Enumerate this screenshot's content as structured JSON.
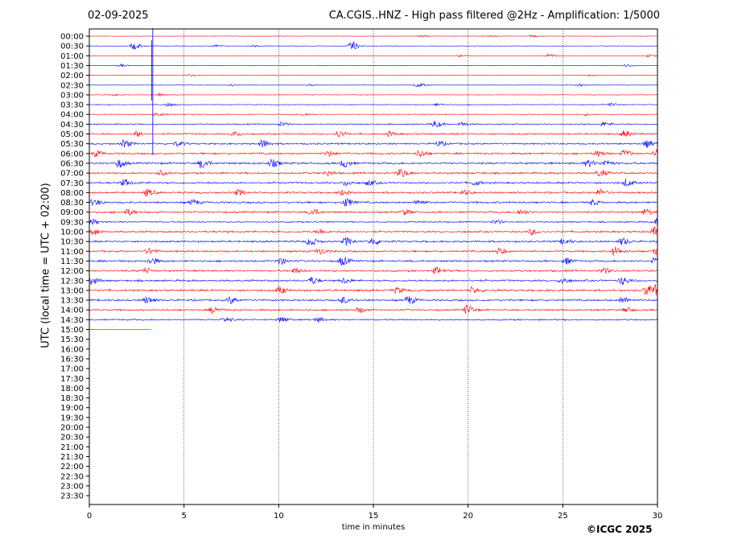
{
  "header": {
    "date": "02-09-2025",
    "title": "CA.CGIS..HNZ - High pass filtered @2Hz - Amplification: 1/5000"
  },
  "footer": {
    "copyright": "©ICGC 2025"
  },
  "colors": {
    "trace_a": "#ff0000",
    "trace_b": "#0000ff",
    "grid": "#000000"
  },
  "chart_data": {
    "type": "line",
    "title": "CA.CGIS..HNZ - High pass filtered @2Hz - Amplification: 1/5000",
    "xlabel": "time in minutes",
    "ylabel": "UTC (local time = UTC + 02:00)",
    "xlim": [
      0,
      30
    ],
    "xticks": [
      0,
      5,
      10,
      15,
      20,
      25,
      30
    ],
    "grid_x": true,
    "row_labels": [
      "00:00",
      "00:30",
      "01:00",
      "01:30",
      "02:00",
      "02:30",
      "03:00",
      "03:30",
      "04:00",
      "04:30",
      "05:00",
      "05:30",
      "06:00",
      "06:30",
      "07:00",
      "07:30",
      "08:00",
      "08:30",
      "09:00",
      "09:30",
      "10:00",
      "10:30",
      "11:00",
      "11:30",
      "12:00",
      "12:30",
      "13:00",
      "13:30",
      "14:00",
      "14:30",
      "15:00",
      "15:30",
      "16:00",
      "16:30",
      "17:00",
      "17:30",
      "18:00",
      "18:30",
      "19:00",
      "19:30",
      "20:00",
      "20:30",
      "21:00",
      "21:30",
      "22:00",
      "22:30",
      "23:00",
      "23:30"
    ],
    "series": [
      {
        "row": "00:00",
        "color": "#ff0000",
        "end_min": 30,
        "noise": 0.3,
        "events": [
          [
            17.5,
            0.5
          ],
          [
            21.2,
            0.5
          ],
          [
            23.3,
            0.4
          ]
        ]
      },
      {
        "row": "00:30",
        "color": "#0000ff",
        "end_min": 30,
        "noise": 0.3,
        "events": [
          [
            2.3,
            1.6
          ],
          [
            6.6,
            0.5
          ],
          [
            8.6,
            0.4
          ],
          [
            13.8,
            2.2
          ]
        ]
      },
      {
        "row": "01:00",
        "color": "#ff0000",
        "end_min": 30,
        "noise": 0.3,
        "events": [
          [
            19.5,
            0.4
          ],
          [
            24.2,
            0.9
          ],
          [
            29.5,
            0.5
          ]
        ]
      },
      {
        "row": "01:30",
        "color": "#0000ff",
        "end_min": 30,
        "noise": 0.25,
        "events": [
          [
            1.6,
            0.6
          ],
          [
            28.3,
            0.6
          ]
        ]
      },
      {
        "row": "02:00",
        "color": "#ff0000",
        "end_min": 30,
        "noise": 0.25,
        "events": [
          [
            5.3,
            0.5
          ],
          [
            26.4,
            0.4
          ]
        ]
      },
      {
        "row": "02:30",
        "color": "#0000ff",
        "end_min": 30,
        "noise": 0.3,
        "events": [
          [
            17.3,
            1.0
          ],
          [
            7.4,
            0.5
          ],
          [
            11.6,
            0.4
          ],
          [
            25.8,
            0.5
          ]
        ]
      },
      {
        "row": "03:00",
        "color": "#ff0000",
        "end_min": 30,
        "noise": 0.3,
        "events": [
          [
            3.7,
            0.8
          ],
          [
            1.2,
            0.4
          ]
        ]
      },
      {
        "row": "03:30",
        "color": "#0000ff",
        "end_min": 30,
        "noise": 0.45,
        "events": [
          [
            4.1,
            0.7
          ],
          [
            18.3,
            0.5
          ],
          [
            27.5,
            0.7
          ]
        ]
      },
      {
        "row": "04:00",
        "color": "#ff0000",
        "end_min": 30,
        "noise": 0.5,
        "events": [
          [
            3.5,
            0.9
          ],
          [
            11.3,
            0.6
          ],
          [
            26.2,
            0.5
          ]
        ]
      },
      {
        "row": "04:30",
        "color": "#0000ff",
        "end_min": 30,
        "noise": 0.7,
        "events": [
          [
            18.2,
            1.6
          ],
          [
            19.6,
            1.0
          ],
          [
            10.1,
            0.9
          ],
          [
            27.1,
            0.9
          ]
        ]
      },
      {
        "row": "05:00",
        "color": "#ff0000",
        "end_min": 30,
        "noise": 1.0,
        "events": [
          [
            2.5,
            1.2
          ],
          [
            13.1,
            1.4
          ],
          [
            28.2,
            1.5
          ],
          [
            15.8,
            1.0
          ],
          [
            7.6,
            1.0
          ]
        ]
      },
      {
        "row": "05:30",
        "color": "#0000ff",
        "end_min": 30,
        "noise": 1.0,
        "events": [
          [
            1.8,
            1.8
          ],
          [
            9.1,
            1.8
          ],
          [
            29.4,
            1.6
          ],
          [
            18.4,
            1.2
          ],
          [
            4.6,
            1.0
          ]
        ]
      },
      {
        "row": "06:00",
        "color": "#ff0000",
        "end_min": 30,
        "noise": 1.1,
        "events": [
          [
            0.3,
            1.3
          ],
          [
            12.6,
            1.2
          ],
          [
            17.4,
            1.6
          ],
          [
            28.2,
            1.5
          ],
          [
            26.8,
            1.3
          ],
          [
            29.9,
            1.5
          ]
        ]
      },
      {
        "row": "06:30",
        "color": "#0000ff",
        "end_min": 30,
        "noise": 1.2,
        "events": [
          [
            1.5,
            1.9
          ],
          [
            5.9,
            2.2
          ],
          [
            9.6,
            1.7
          ],
          [
            13.4,
            1.8
          ],
          [
            26.3,
            1.6
          ],
          [
            27.2,
            1.4
          ]
        ]
      },
      {
        "row": "07:00",
        "color": "#ff0000",
        "end_min": 30,
        "noise": 1.1,
        "events": [
          [
            16.4,
            2.1
          ],
          [
            26.9,
            1.6
          ],
          [
            3.7,
            1.1
          ],
          [
            12.5,
            1.1
          ]
        ]
      },
      {
        "row": "07:30",
        "color": "#0000ff",
        "end_min": 30,
        "noise": 1.1,
        "events": [
          [
            1.8,
            1.5
          ],
          [
            28.3,
            1.7
          ],
          [
            13.5,
            1.2
          ],
          [
            14.7,
            1.2
          ],
          [
            20.3,
            1.1
          ]
        ]
      },
      {
        "row": "08:00",
        "color": "#ff0000",
        "end_min": 30,
        "noise": 1.1,
        "events": [
          [
            3.0,
            1.5
          ],
          [
            7.8,
            1.3
          ],
          [
            13.3,
            1.2
          ],
          [
            26.9,
            1.5
          ],
          [
            19.7,
            1.2
          ]
        ]
      },
      {
        "row": "08:30",
        "color": "#0000ff",
        "end_min": 30,
        "noise": 1.1,
        "events": [
          [
            13.5,
            2.0
          ],
          [
            5.4,
            1.3
          ],
          [
            0.2,
            1.5
          ],
          [
            17.3,
            1.2
          ],
          [
            26.5,
            1.2
          ]
        ]
      },
      {
        "row": "09:00",
        "color": "#ff0000",
        "end_min": 30,
        "noise": 1.1,
        "events": [
          [
            11.7,
            1.6
          ],
          [
            2.0,
            1.3
          ],
          [
            16.6,
            1.2
          ],
          [
            22.7,
            1.2
          ],
          [
            29.3,
            1.4
          ]
        ]
      },
      {
        "row": "09:30",
        "color": "#0000ff",
        "end_min": 30,
        "noise": 0.8,
        "events": [
          [
            0.1,
            1.3
          ],
          [
            29.9,
            1.3
          ],
          [
            21.4,
            0.9
          ]
        ]
      },
      {
        "row": "10:00",
        "color": "#ff0000",
        "end_min": 30,
        "noise": 1.1,
        "events": [
          [
            0.2,
            1.5
          ],
          [
            23.3,
            1.3
          ],
          [
            29.8,
            1.9
          ],
          [
            12.1,
            1.2
          ]
        ]
      },
      {
        "row": "10:30",
        "color": "#0000ff",
        "end_min": 30,
        "noise": 1.1,
        "events": [
          [
            11.6,
            1.9
          ],
          [
            13.5,
            1.9
          ],
          [
            14.9,
            1.6
          ],
          [
            25.0,
            1.4
          ],
          [
            28.1,
            1.6
          ]
        ]
      },
      {
        "row": "11:00",
        "color": "#ff0000",
        "end_min": 30,
        "noise": 1.1,
        "events": [
          [
            3.1,
            1.3
          ],
          [
            12.1,
            1.3
          ],
          [
            21.6,
            1.5
          ],
          [
            27.7,
            2.0
          ],
          [
            29.9,
            1.6
          ]
        ]
      },
      {
        "row": "11:30",
        "color": "#0000ff",
        "end_min": 30,
        "noise": 1.1,
        "events": [
          [
            3.2,
            1.6
          ],
          [
            10.0,
            1.6
          ],
          [
            13.3,
            2.0
          ],
          [
            25.1,
            1.5
          ],
          [
            29.8,
            1.4
          ]
        ]
      },
      {
        "row": "12:00",
        "color": "#ff0000",
        "end_min": 30,
        "noise": 1.1,
        "events": [
          [
            18.3,
            1.6
          ],
          [
            27.1,
            1.3
          ],
          [
            2.9,
            1.2
          ],
          [
            10.8,
            1.2
          ]
        ]
      },
      {
        "row": "12:30",
        "color": "#0000ff",
        "end_min": 30,
        "noise": 1.1,
        "events": [
          [
            0.1,
            1.7
          ],
          [
            11.7,
            1.6
          ],
          [
            24.9,
            1.5
          ],
          [
            28.1,
            1.8
          ],
          [
            13.4,
            1.3
          ]
        ]
      },
      {
        "row": "13:00",
        "color": "#ff0000",
        "end_min": 30,
        "noise": 1.2,
        "events": [
          [
            10.0,
            1.5
          ],
          [
            20.2,
            1.4
          ],
          [
            29.4,
            2.6
          ],
          [
            29.9,
            1.9
          ],
          [
            16.2,
            1.2
          ]
        ]
      },
      {
        "row": "13:30",
        "color": "#0000ff",
        "end_min": 30,
        "noise": 1.1,
        "events": [
          [
            3.0,
            1.6
          ],
          [
            7.4,
            1.6
          ],
          [
            13.3,
            1.6
          ],
          [
            16.8,
            1.9
          ],
          [
            28.1,
            1.4
          ]
        ]
      },
      {
        "row": "14:00",
        "color": "#ff0000",
        "end_min": 30,
        "noise": 1.0,
        "events": [
          [
            6.5,
            1.5
          ],
          [
            19.9,
            2.1
          ],
          [
            14.2,
            1.2
          ],
          [
            28.3,
            1.2
          ]
        ]
      },
      {
        "row": "14:30",
        "color": "#0000ff",
        "end_min": 30,
        "noise": 0.9,
        "events": [
          [
            10.1,
            1.4
          ],
          [
            12.0,
            1.1
          ],
          [
            7.1,
            1.0
          ]
        ]
      },
      {
        "row": "15:00",
        "color": "#ff0000",
        "end_min": 3.3,
        "noise": 0.25,
        "events": []
      }
    ],
    "spikes": [
      {
        "minute": 3.35,
        "from_row": "00:00",
        "to_row": "06:00",
        "color": "#0000ff"
      }
    ]
  }
}
